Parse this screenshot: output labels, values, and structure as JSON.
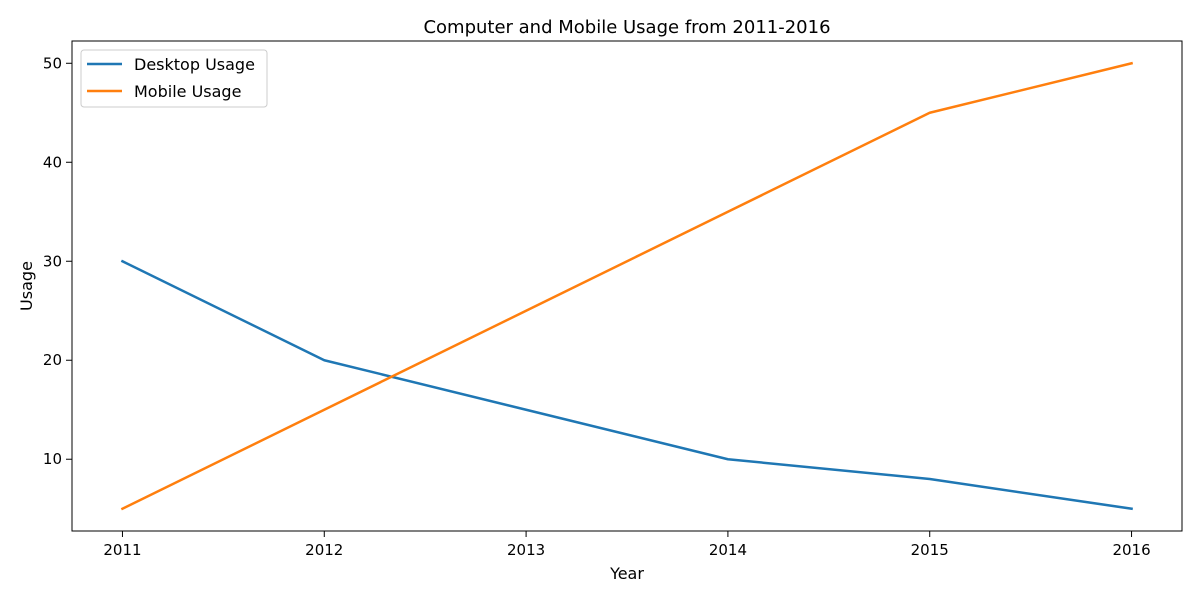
{
  "chart_data": {
    "type": "line",
    "title": "Computer and Mobile Usage from 2011-2016",
    "xlabel": "Year",
    "ylabel": "Usage",
    "x": [
      2011,
      2012,
      2013,
      2014,
      2015,
      2016
    ],
    "x_tick_labels": [
      "2011",
      "2012",
      "2013",
      "2014",
      "2015",
      "2016"
    ],
    "y_ticks": [
      10,
      20,
      30,
      40,
      50
    ],
    "y_tick_labels": [
      "10",
      "20",
      "30",
      "40",
      "50"
    ],
    "xlim": [
      2010.75,
      2016.25
    ],
    "ylim": [
      2.75,
      52.25
    ],
    "grid": false,
    "legend_position": "top-left",
    "series": [
      {
        "name": "Desktop Usage",
        "color": "#1f77b4",
        "values": [
          30,
          20,
          15,
          10,
          8,
          5
        ]
      },
      {
        "name": "Mobile Usage",
        "color": "#ff7f0e",
        "values": [
          5,
          15,
          25,
          35,
          45,
          50
        ]
      }
    ]
  }
}
